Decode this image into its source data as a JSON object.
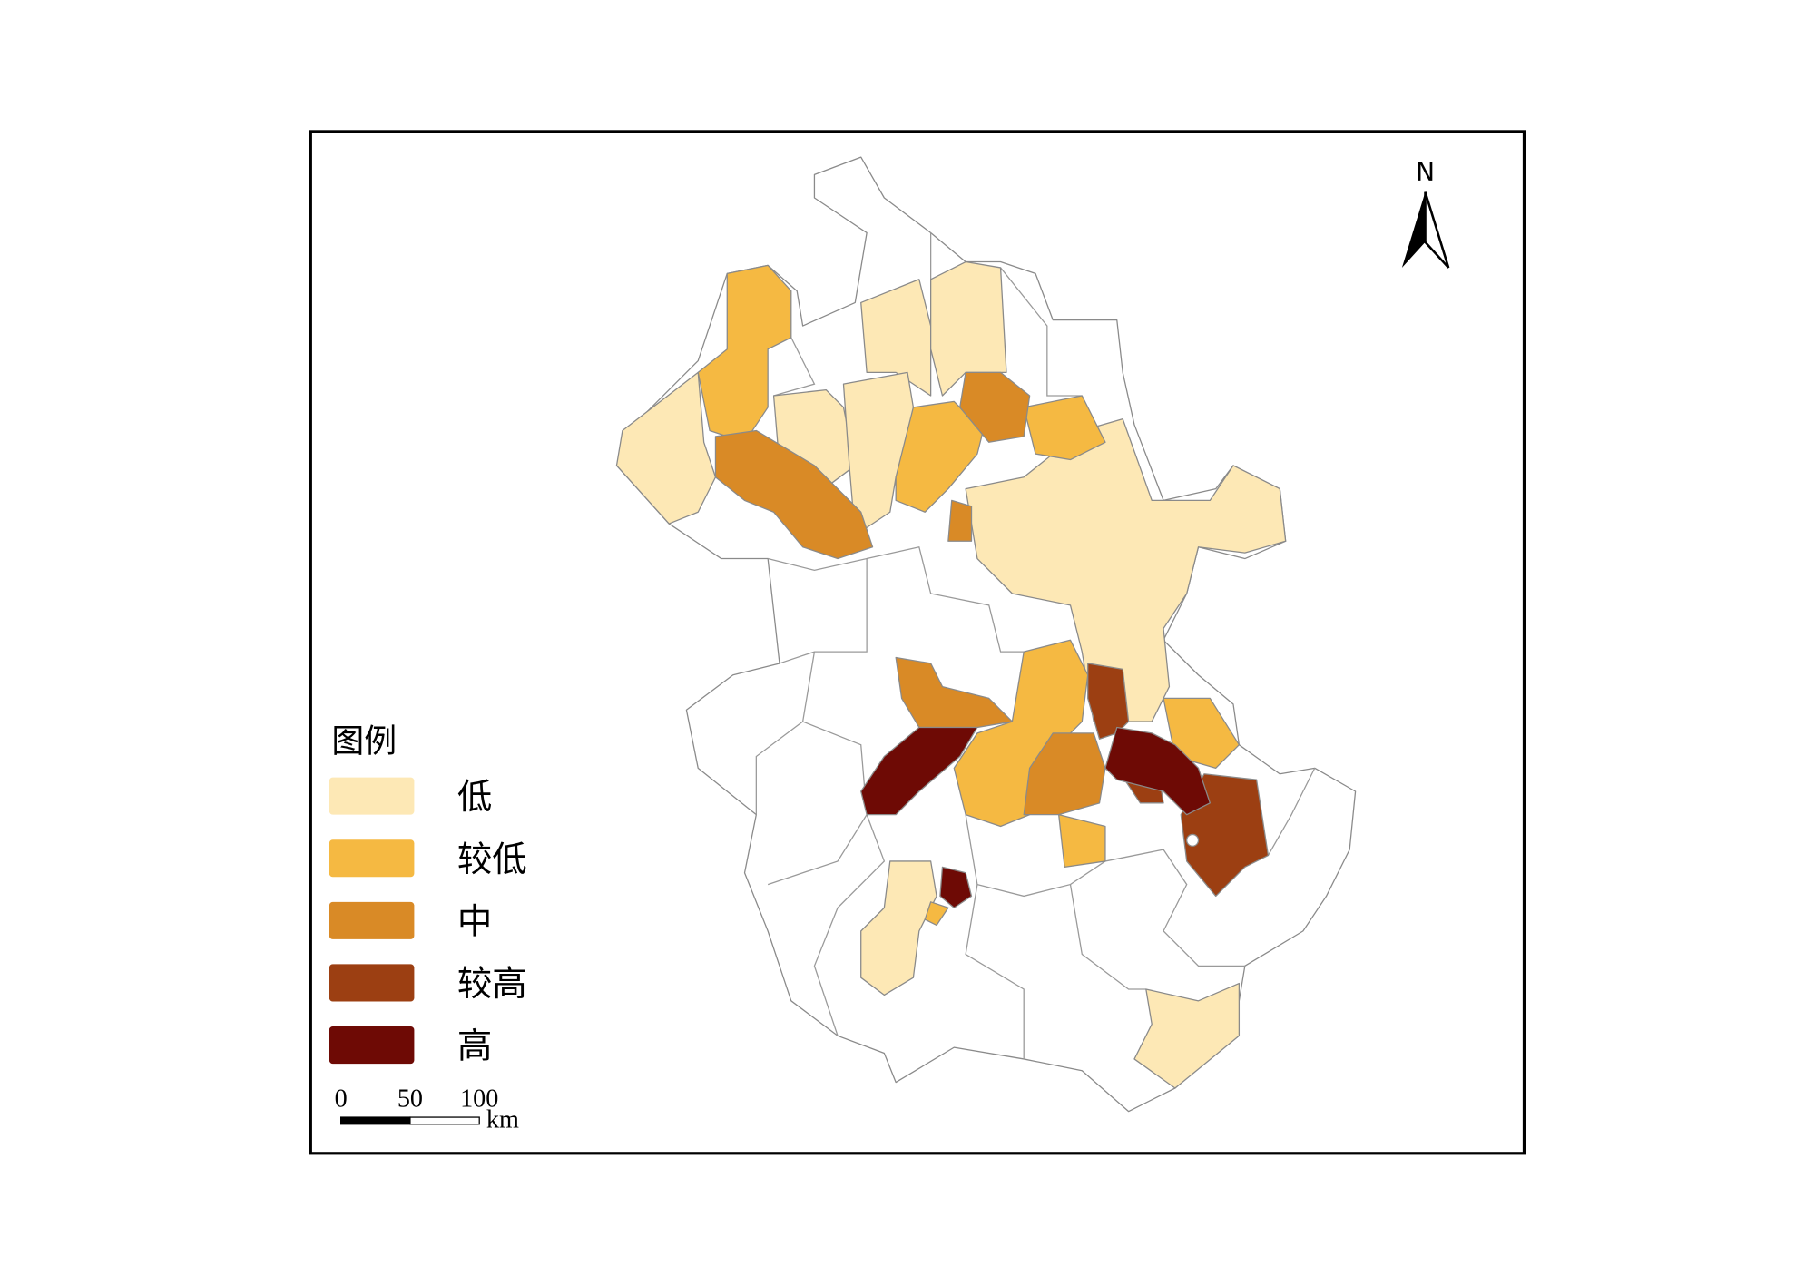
{
  "legend": {
    "title": "图例",
    "items": [
      {
        "label": "低",
        "color": "#fde8b5"
      },
      {
        "label": "较低",
        "color": "#f5b942"
      },
      {
        "label": "中",
        "color": "#d98a26"
      },
      {
        "label": "较高",
        "color": "#9c3f12"
      },
      {
        "label": "高",
        "color": "#6e0a05"
      }
    ]
  },
  "north_arrow": {
    "label": "N"
  },
  "scale_bar": {
    "ticks": [
      0,
      50,
      100
    ],
    "unit": "km"
  }
}
